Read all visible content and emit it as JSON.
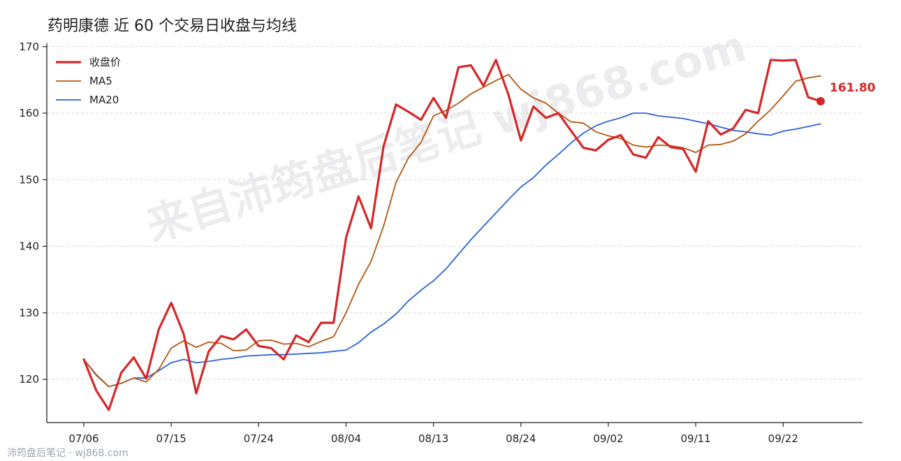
{
  "chart_data": {
    "type": "line",
    "title": "药明康德 近 60 个交易日收盘与均线",
    "xlabel": "",
    "ylabel": "",
    "x_tick_labels": [
      "07/06",
      "07/15",
      "07/24",
      "08/04",
      "08/13",
      "08/24",
      "09/02",
      "09/11",
      "09/22"
    ],
    "x_tick_indices": [
      0,
      7,
      14,
      21,
      28,
      35,
      42,
      49,
      56
    ],
    "ylim": [
      113.5,
      170.5
    ],
    "yticks": [
      120,
      130,
      140,
      150,
      160,
      170
    ],
    "grid": "horizontal-dashed",
    "legend_position": "top-left",
    "series": [
      {
        "name": "收盘价",
        "color": "#d62728",
        "values": [
          123.0,
          118.3,
          115.4,
          121.0,
          123.3,
          120.1,
          127.5,
          131.5,
          126.8,
          117.9,
          124.2,
          126.5,
          126.0,
          127.5,
          125.0,
          124.7,
          123.0,
          126.6,
          125.6,
          128.5,
          128.5,
          141.3,
          147.5,
          142.7,
          155.0,
          161.3,
          160.2,
          159.0,
          162.3,
          159.3,
          166.9,
          167.2,
          164.1,
          168.0,
          162.8,
          155.9,
          161.0,
          159.3,
          160.0,
          157.4,
          154.8,
          154.4,
          156.0,
          156.7,
          153.8,
          153.3,
          156.4,
          154.9,
          154.6,
          151.2,
          158.8,
          156.8,
          157.7,
          160.5,
          160.0,
          168.0,
          167.9,
          168.0,
          162.4,
          161.8
        ]
      },
      {
        "name": "MA5",
        "color": "#b5560f",
        "values": [
          123.0,
          120.7,
          118.9,
          119.4,
          120.2,
          119.6,
          121.5,
          124.7,
          125.8,
          124.8,
          125.6,
          125.4,
          124.3,
          124.4,
          125.8,
          125.9,
          125.3,
          125.4,
          124.9,
          125.7,
          126.4,
          130.0,
          134.3,
          137.7,
          143.0,
          149.6,
          153.3,
          155.6,
          159.6,
          160.4,
          161.5,
          162.9,
          163.9,
          164.9,
          165.8,
          163.6,
          162.3,
          161.5,
          160.0,
          158.7,
          158.5,
          157.2,
          156.6,
          156.2,
          155.2,
          154.9,
          155.2,
          155.1,
          154.8,
          154.1,
          155.2,
          155.3,
          155.8,
          156.9,
          158.8,
          160.5,
          162.6,
          164.8,
          165.3,
          165.6
        ]
      },
      {
        "name": "MA20",
        "color": "#2b63d9",
        "values": [
          123.0,
          120.6,
          118.9,
          119.4,
          120.2,
          120.2,
          121.3,
          122.5,
          123.0,
          122.5,
          122.7,
          123.0,
          123.2,
          123.5,
          123.6,
          123.7,
          123.7,
          123.8,
          123.9,
          124.0,
          124.2,
          124.4,
          125.5,
          127.1,
          128.3,
          129.8,
          131.8,
          133.4,
          134.8,
          136.6,
          138.8,
          141.0,
          143.0,
          145.0,
          147.0,
          148.9,
          150.3,
          152.2,
          153.8,
          155.5,
          157.0,
          158.1,
          158.8,
          159.3,
          160.0,
          160.0,
          159.6,
          159.4,
          159.2,
          158.8,
          158.4,
          157.9,
          157.4,
          157.2,
          156.9,
          156.7,
          157.3,
          157.6,
          158.0,
          158.4
        ]
      }
    ],
    "end_point_label": "161.80"
  },
  "watermark": "来自沛筠盘后笔记 wj868.com",
  "footer_text": "沛筠盘后笔记 · wj868.com"
}
